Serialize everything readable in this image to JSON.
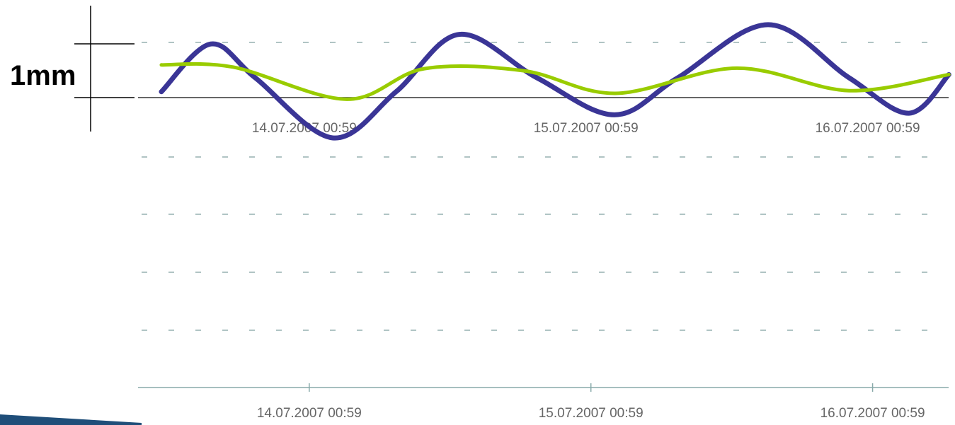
{
  "chart_data": {
    "type": "line",
    "scale_label": "1mm",
    "xlim": [
      -13.2,
      54.6
    ],
    "ylim": [
      -1.08,
      1.82
    ],
    "xticks": [
      {
        "value": 0,
        "label": "14.07.2007 00:59"
      },
      {
        "value": 24,
        "label": "15.07.2007 00:59"
      },
      {
        "value": 48,
        "label": "16.07.2007 00:59"
      }
    ],
    "series": [
      {
        "name": null,
        "color": "#3a3596",
        "x": [
          -12.6,
          -8.4,
          -4.6,
          2.0,
          7.4,
          12.8,
          19.4,
          26.0,
          31.4,
          39.1,
          46.0,
          51.1,
          54.5
        ],
        "values": [
          0.11,
          1.0,
          0.37,
          -0.75,
          0.11,
          1.18,
          0.37,
          -0.32,
          0.37,
          1.36,
          0.37,
          -0.29,
          0.43
        ]
      },
      {
        "name": null,
        "color": "#99cc00",
        "x": [
          -12.6,
          -6.5,
          3.2,
          9.8,
          18.3,
          26.1,
          36.4,
          46.0,
          54.5
        ],
        "values": [
          0.61,
          0.57,
          -0.03,
          0.54,
          0.5,
          0.08,
          0.55,
          0.13,
          0.43
        ]
      }
    ]
  }
}
